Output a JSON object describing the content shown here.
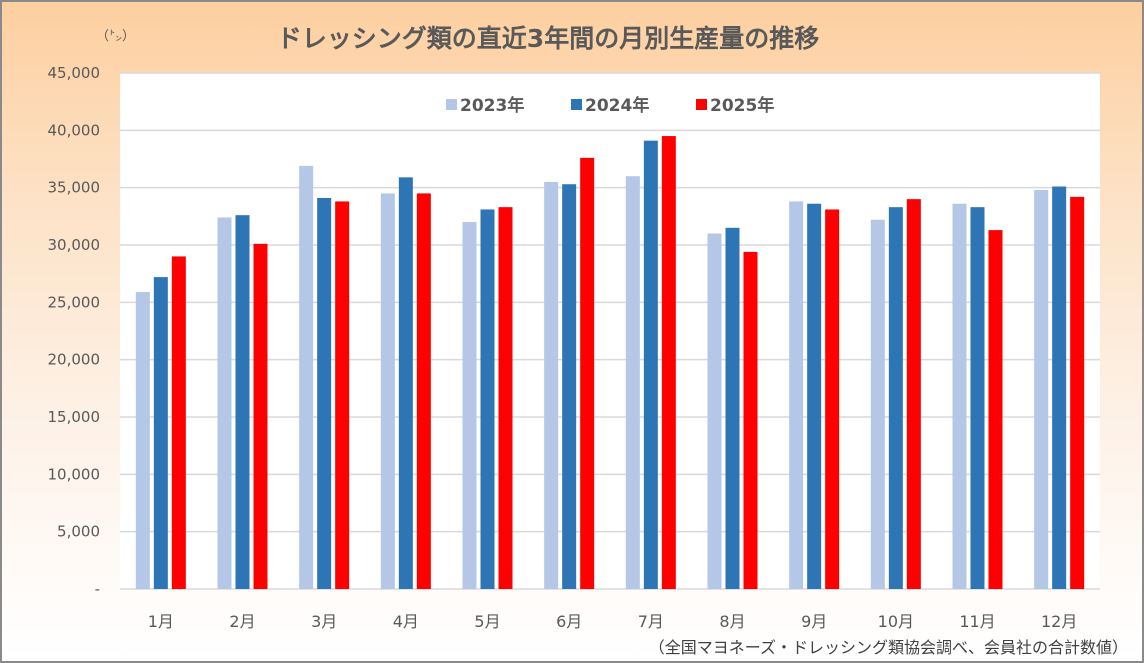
{
  "chart_data": {
    "type": "bar",
    "title": "ドレッシング類の直近3年間の月別生産量の推移",
    "unit_label": "（㌧）",
    "xlabel": "",
    "ylabel": "（㌧）",
    "ylim": [
      0,
      45000
    ],
    "yticks": [
      0,
      5000,
      10000,
      15000,
      20000,
      25000,
      30000,
      35000,
      40000,
      45000
    ],
    "ytick_labels": [
      "-",
      "5,000",
      "10,000",
      "15,000",
      "20,000",
      "25,000",
      "30,000",
      "35,000",
      "40,000",
      "45,000"
    ],
    "grid": true,
    "legend_position": "top-center",
    "categories": [
      "1月",
      "2月",
      "3月",
      "4月",
      "5月",
      "6月",
      "7月",
      "8月",
      "9月",
      "10月",
      "11月",
      "12月"
    ],
    "series": [
      {
        "name": "2023年",
        "color": "#b4c7e7",
        "values": [
          25900,
          32400,
          36900,
          34500,
          32000,
          35500,
          36000,
          31000,
          33800,
          32200,
          33600,
          34800
        ]
      },
      {
        "name": "2024年",
        "color": "#2e75b6",
        "values": [
          27200,
          32600,
          34100,
          35900,
          33100,
          35300,
          39100,
          31500,
          33600,
          33300,
          33300,
          35100
        ]
      },
      {
        "name": "2025年",
        "color": "#ff0000",
        "values": [
          29000,
          30100,
          33800,
          34500,
          33300,
          37600,
          39500,
          29400,
          33100,
          34000,
          31300,
          34200
        ]
      }
    ],
    "source_note": "（全国マヨネーズ・ドレッシング類協会調べ、会員社の合計数値）"
  }
}
